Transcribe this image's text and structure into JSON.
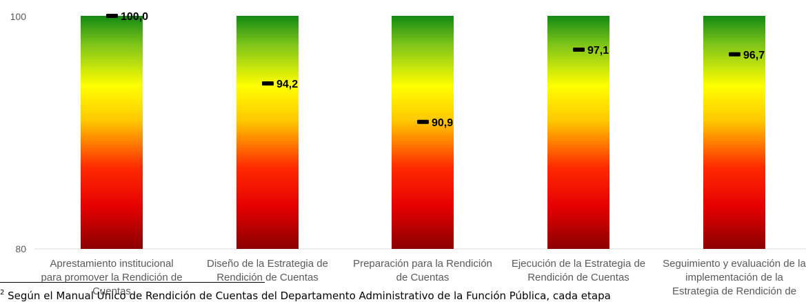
{
  "chart_data": {
    "type": "bar",
    "categories": [
      "Aprestamiento institucional para promover la Rendición de Cuentas",
      "Diseño de la Estrategia de Rendición de Cuentas",
      "Preparación para la Rendición de Cuentas",
      "Ejecución de la Estrategia de Rendición de Cuentas",
      "Seguimiento y evaluación de la implementación de la Estrategia de Rendición de"
    ],
    "values": [
      100.0,
      94.2,
      90.9,
      97.1,
      96.7
    ],
    "value_labels": [
      "100,0",
      "94,2",
      "90,9",
      "97,1",
      "96,7"
    ],
    "ylim": [
      80,
      100
    ],
    "ytick_labels": [
      "100",
      "80"
    ],
    "bar_gradient": [
      "#007a1a",
      "#5cbf1a",
      "#ffff00",
      "#ff0000",
      "#8b0000"
    ],
    "grid": false,
    "legend": "none"
  },
  "footnote": {
    "marker": "2",
    "text": "Según el Manual Único de Rendición de Cuentas del Departamento Administrativo de la Función Pública, cada etapa"
  }
}
